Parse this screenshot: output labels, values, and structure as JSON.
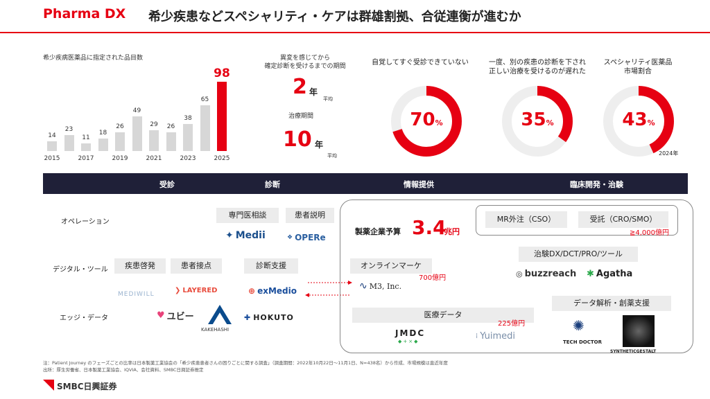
{
  "header": {
    "title": "Pharma DX",
    "subtitle": "希少疾患などスペシャリティ・ケアは群雄割拠、合従連衡が進むか"
  },
  "chart_data": {
    "type": "bar",
    "title": "希少疾病医薬品に指定された品目数",
    "categories": [
      "2015",
      "2016",
      "2017",
      "2018",
      "2019",
      "2020",
      "2021",
      "2022",
      "2023",
      "2024",
      "2025"
    ],
    "tick_labels": [
      "2015",
      "2017",
      "2019",
      "2021",
      "2023",
      "2025"
    ],
    "values": [
      14,
      23,
      11,
      18,
      26,
      49,
      29,
      26,
      38,
      65,
      98
    ],
    "highlight_index": 10,
    "ylim": [
      0,
      100
    ]
  },
  "diagnosis": {
    "label1": "異変を感じてから",
    "label2": "確定診断を受けるまでの期間",
    "value1": "2",
    "unit1": "年",
    "note1": "平均",
    "label3": "治療期間",
    "value2": "10",
    "unit2": "年",
    "note2": "平均"
  },
  "donuts": [
    {
      "label": "自覚してすぐ受診できていない",
      "value": "70",
      "unit": "%",
      "percent": 70,
      "note": ""
    },
    {
      "label": "一度、別の疾患の診断を下され\n正しい治療を受けるのが遅れた",
      "value": "35",
      "unit": "%",
      "percent": 35,
      "note": ""
    },
    {
      "label": "スペシャリティ医薬品\n市場割合",
      "value": "43",
      "unit": "%",
      "percent": 43,
      "note": "2024年"
    }
  ],
  "phases": [
    "受診",
    "診断",
    "情報提供",
    "臨床開発・治験"
  ],
  "rows": [
    "オペレーション",
    "デジタル・ツール",
    "エッジ・データ"
  ],
  "tags": {
    "specialist": "専門医相談",
    "patient_explain": "患者説明",
    "awareness": "疾患啓発",
    "patient_contact": "患者接点",
    "diagnosis_support": "診断支援",
    "online_marketing": "オンラインマーケ",
    "medical_data": "医療データ",
    "mr": "MR外注（CSO）",
    "cro": "受託（CRO/SMO）",
    "trial_dx": "治験DX/DCT/PRO/ツール",
    "data_analysis": "データ解析・創薬支援"
  },
  "logos": {
    "medii": "Medii",
    "opere": "OPERe",
    "mediwill": "MEDIWILL",
    "layered": "LAYERED",
    "exmedio": "exMedio",
    "yubi": "ユビー",
    "kakehashi": "KAKEHASHI",
    "hokuto": "HOKUTO",
    "m3": "M3, Inc.",
    "jmdc": "JMDC",
    "jmdc_sub": "◆+×◆",
    "yuimedi": "Yuimedi",
    "buzzreach": "buzzreach",
    "agatha": "Agatha",
    "techdoctor": "TECH DOCTOR",
    "synthetic": "SYNTHETICGESTALT"
  },
  "money": {
    "pharma_budget_label": "製薬企業予算",
    "pharma_budget_value": "3.4",
    "pharma_budget_unit": "兆円",
    "cro": "≧4,000億円",
    "online": "700億円",
    "medical": "225億円"
  },
  "footer": {
    "note": "注：Patient Journey のフェーズごとの比率は日本製薬工業協会の「希少疾患患者さんの困りごとに関する調査」（調査期間：2022年10月22日～11月1日、N=438名）から作成、市場規模は直近年度",
    "source": "出所：厚生労働省、日本製薬工業協会、IQVIA、会社資料、SMBC日興証券推定",
    "brand": "SMBC日興証券"
  },
  "colors": {
    "accent": "#e60012",
    "dark": "#1f2038",
    "bar": "#d7d7d7"
  }
}
